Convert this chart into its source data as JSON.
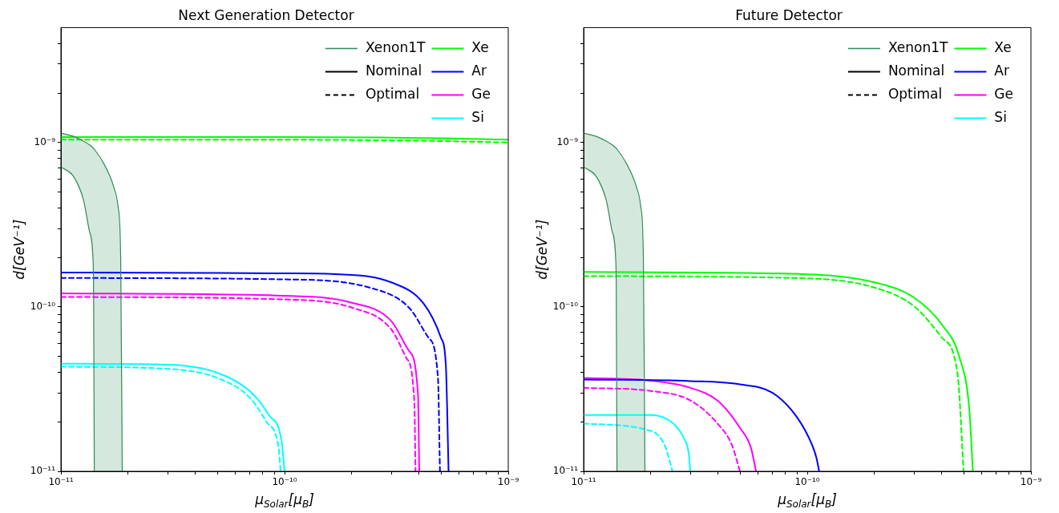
{
  "chart_data": [
    {
      "type": "line",
      "title": "Next Generation Detector",
      "xlabel": "μ$_{Solar}$[μ$_{B}$]",
      "ylabel": "d[GeV⁻¹]",
      "log": "xy",
      "grid": false,
      "legend": "top right",
      "xlim": [
        1e-11,
        1e-09
      ],
      "ylim": [
        1e-11,
        5e-09
      ],
      "xticks": [
        {
          "value": 1e-11,
          "label": "10⁻¹¹"
        },
        {
          "value": 2e-11,
          "label": null
        },
        {
          "value": 3e-11,
          "label": null
        },
        {
          "value": 4e-11,
          "label": null
        },
        {
          "value": 5e-11,
          "label": null
        },
        {
          "value": 6e-11,
          "label": null
        },
        {
          "value": 7e-11,
          "label": null
        },
        {
          "value": 8e-11,
          "label": null
        },
        {
          "value": 9e-11,
          "label": null
        },
        {
          "value": 1e-10,
          "label": "10⁻¹⁰"
        },
        {
          "value": 2e-10,
          "label": null
        },
        {
          "value": 3e-10,
          "label": null
        },
        {
          "value": 4e-10,
          "label": null
        },
        {
          "value": 5e-10,
          "label": null
        },
        {
          "value": 6e-10,
          "label": null
        },
        {
          "value": 7e-10,
          "label": null
        },
        {
          "value": 8e-10,
          "label": null
        },
        {
          "value": 9e-10,
          "label": null
        },
        {
          "value": 1e-09,
          "label": "10⁻⁹"
        }
      ],
      "yticks": [
        {
          "value": 1e-11,
          "label": "10⁻¹¹"
        },
        {
          "value": 2e-11,
          "label": null
        },
        {
          "value": 3e-11,
          "label": null
        },
        {
          "value": 4e-11,
          "label": null
        },
        {
          "value": 5e-11,
          "label": null
        },
        {
          "value": 6e-11,
          "label": null
        },
        {
          "value": 7e-11,
          "label": null
        },
        {
          "value": 8e-11,
          "label": null
        },
        {
          "value": 9e-11,
          "label": null
        },
        {
          "value": 1e-10,
          "label": "10⁻¹⁰"
        },
        {
          "value": 2e-10,
          "label": null
        },
        {
          "value": 3e-10,
          "label": null
        },
        {
          "value": 4e-10,
          "label": null
        },
        {
          "value": 5e-10,
          "label": null
        },
        {
          "value": 6e-10,
          "label": null
        },
        {
          "value": 7e-10,
          "label": null
        },
        {
          "value": 8e-10,
          "label": null
        },
        {
          "value": 9e-10,
          "label": null
        },
        {
          "value": 1e-09,
          "label": "10⁻⁹"
        },
        {
          "value": 2e-09,
          "label": null
        },
        {
          "value": 3e-09,
          "label": null
        },
        {
          "value": 4e-09,
          "label": null
        }
      ],
      "series": [
        {
          "name": "Xenon1T",
          "type": "area",
          "color": "#2e8b57",
          "x": [
            1e-11,
            1.14e-11,
            1.26e-11,
            1.34e-11,
            1.39e-11,
            1.4e-11,
            1.41e-11,
            1.55e-11,
            1.72e-11,
            1.8e-11,
            1.85e-11,
            1.88e-11
          ],
          "values": [
            1.14e-09,
            1.09e-09,
            1.02e-09,
            9.7e-10,
            9.3e-10,
            9.2e-10,
            9.1e-10,
            7.5e-10,
            5.4e-10,
            4.1e-10,
            2e-10,
            1e-11
          ]
        },
        {
          "type": "line",
          "color": "#2e8b57",
          "x": [
            1e-11,
            1.14e-11,
            1.26e-11,
            1.34e-11,
            1.39e-11,
            1.4e-11,
            1.41e-11
          ],
          "values": [
            7.1e-10,
            6.2e-10,
            4.5e-10,
            2.9e-10,
            2e-10,
            1.2e-10,
            1e-11
          ]
        },
        {
          "name": "Nominal",
          "color": "#000000",
          "line_style": "solid"
        },
        {
          "name": "Optimal",
          "color": "#000000",
          "line_style": "dashed"
        },
        {
          "name": "Xe",
          "color": "#00ff00",
          "line_style": "solid",
          "x": [
            1e-11,
            1e-10,
            3e-10,
            5e-10,
            1e-09
          ],
          "values": [
            1.08e-09,
            1.08e-09,
            1.07e-09,
            1.06e-09,
            1.04e-09
          ]
        },
        {
          "name": "Ar",
          "color": "#0000ff",
          "line_style": "solid",
          "x": [
            1e-11,
            5e-11,
            1e-10,
            1.76e-10,
            3e-10,
            4.2e-10,
            5e-10,
            5.26e-10,
            5.41e-10
          ],
          "values": [
            1.62e-10,
            1.61e-10,
            1.6e-10,
            1.58e-10,
            1.41e-10,
            1.04e-10,
            6.5e-11,
            4.4e-11,
            1e-11
          ]
        },
        {
          "name": "Ge",
          "color": "#ff00ff",
          "line_style": "solid",
          "x": [
            1e-11,
            1e-10,
            2e-10,
            3e-10,
            3.6e-10,
            3.95e-10,
            4e-10
          ],
          "values": [
            1.21e-10,
            1.17e-10,
            1.06e-10,
            8.2e-11,
            5.4e-11,
            2.9e-11,
            1e-11
          ]
        },
        {
          "name": "Si",
          "color": "#00ffff",
          "line_style": "solid",
          "x": [
            1e-11,
            3e-11,
            5e-11,
            7e-11,
            8.5e-11,
            9.7e-11,
            1e-10
          ],
          "values": [
            4.51e-11,
            4.45e-11,
            3.98e-11,
            3.07e-11,
            2.2e-11,
            1.52e-11,
            1e-11
          ]
        },
        {
          "color": "#00ff00",
          "line_style": "dashed",
          "x": [
            1e-11,
            1e-10,
            3e-10,
            5e-10,
            1e-09
          ],
          "values": [
            1.04e-09,
            1.04e-09,
            1.03e-09,
            1.02e-09,
            1e-09
          ]
        },
        {
          "color": "#0000ff",
          "line_style": "dashed",
          "x": [
            1e-11,
            1e-10,
            2.4e-10,
            3.6e-10,
            4.4e-10,
            4.85e-10,
            4.95e-10
          ],
          "values": [
            1.5e-10,
            1.47e-10,
            1.31e-10,
            9.9e-11,
            6.5e-11,
            3.7e-11,
            1e-11
          ]
        },
        {
          "color": "#ff00ff",
          "line_style": "dashed",
          "x": [
            1e-11,
            1e-10,
            2e-10,
            3e-10,
            3.5e-10,
            3.8e-10,
            3.85e-10
          ],
          "values": [
            1.15e-10,
            1.11e-10,
            9.9e-11,
            7.3e-11,
            4.9e-11,
            2.7e-11,
            1e-11
          ]
        },
        {
          "color": "#00ffff",
          "line_style": "dashed",
          "x": [
            1e-11,
            3e-11,
            5e-11,
            7e-11,
            8.3e-11,
            9.4e-11,
            9.6e-11
          ],
          "values": [
            4.33e-11,
            4.2e-11,
            3.7e-11,
            2.8e-11,
            2e-11,
            1.39e-11,
            1e-11
          ]
        }
      ]
    },
    {
      "type": "line",
      "title": "Future Detector",
      "xlabel": "μ$_{Solar}$[μ$_{B}$]",
      "ylabel": "d[GeV⁻¹]",
      "log": "xy",
      "grid": false,
      "legend": "top right",
      "xlim": [
        1e-11,
        1e-09
      ],
      "ylim": [
        1e-11,
        5e-09
      ],
      "xticks": [
        {
          "value": 1e-11,
          "label": "10⁻¹¹"
        },
        {
          "value": 2e-11,
          "label": null
        },
        {
          "value": 3e-11,
          "label": null
        },
        {
          "value": 4e-11,
          "label": null
        },
        {
          "value": 5e-11,
          "label": null
        },
        {
          "value": 6e-11,
          "label": null
        },
        {
          "value": 7e-11,
          "label": null
        },
        {
          "value": 8e-11,
          "label": null
        },
        {
          "value": 9e-11,
          "label": null
        },
        {
          "value": 1e-10,
          "label": "10⁻¹⁰"
        },
        {
          "value": 2e-10,
          "label": null
        },
        {
          "value": 3e-10,
          "label": null
        },
        {
          "value": 4e-10,
          "label": null
        },
        {
          "value": 5e-10,
          "label": null
        },
        {
          "value": 6e-10,
          "label": null
        },
        {
          "value": 7e-10,
          "label": null
        },
        {
          "value": 8e-10,
          "label": null
        },
        {
          "value": 9e-10,
          "label": null
        },
        {
          "value": 1e-09,
          "label": "10⁻⁹"
        }
      ],
      "yticks": [
        {
          "value": 1e-11,
          "label": "10⁻¹¹"
        },
        {
          "value": 2e-11,
          "label": null
        },
        {
          "value": 3e-11,
          "label": null
        },
        {
          "value": 4e-11,
          "label": null
        },
        {
          "value": 5e-11,
          "label": null
        },
        {
          "value": 6e-11,
          "label": null
        },
        {
          "value": 7e-11,
          "label": null
        },
        {
          "value": 8e-11,
          "label": null
        },
        {
          "value": 9e-11,
          "label": null
        },
        {
          "value": 1e-10,
          "label": "10⁻¹⁰"
        },
        {
          "value": 2e-10,
          "label": null
        },
        {
          "value": 3e-10,
          "label": null
        },
        {
          "value": 4e-10,
          "label": null
        },
        {
          "value": 5e-10,
          "label": null
        },
        {
          "value": 6e-10,
          "label": null
        },
        {
          "value": 7e-10,
          "label": null
        },
        {
          "value": 8e-10,
          "label": null
        },
        {
          "value": 9e-10,
          "label": null
        },
        {
          "value": 1e-09,
          "label": "10⁻⁹"
        },
        {
          "value": 2e-09,
          "label": null
        },
        {
          "value": 3e-09,
          "label": null
        },
        {
          "value": 4e-09,
          "label": null
        }
      ],
      "series": [
        {
          "name": "Xenon1T",
          "type": "area",
          "color": "#2e8b57",
          "x": [
            1e-11,
            1.14e-11,
            1.26e-11,
            1.34e-11,
            1.39e-11,
            1.4e-11,
            1.41e-11,
            1.55e-11,
            1.72e-11,
            1.8e-11,
            1.85e-11,
            1.88e-11
          ],
          "values": [
            1.14e-09,
            1.09e-09,
            1.02e-09,
            9.7e-10,
            9.3e-10,
            9.2e-10,
            9.1e-10,
            7.5e-10,
            5.4e-10,
            4.1e-10,
            2e-10,
            1e-11
          ]
        },
        {
          "type": "line",
          "color": "#2e8b57",
          "x": [
            1e-11,
            1.14e-11,
            1.26e-11,
            1.34e-11,
            1.39e-11,
            1.4e-11,
            1.41e-11
          ],
          "values": [
            7.1e-10,
            6.2e-10,
            4.5e-10,
            2.9e-10,
            2e-10,
            1.2e-10,
            1e-11
          ]
        },
        {
          "name": "Nominal",
          "color": "#000000",
          "line_style": "solid"
        },
        {
          "name": "Optimal",
          "color": "#000000",
          "line_style": "dashed"
        },
        {
          "name": "Xe",
          "color": "#00ff00",
          "line_style": "solid",
          "x": [
            1e-11,
            1e-10,
            2e-10,
            3e-10,
            4e-10,
            4.8e-10,
            5.3e-10,
            5.5e-10
          ],
          "values": [
            1.63e-10,
            1.58e-10,
            1.41e-10,
            1.14e-10,
            7.8e-11,
            4.9e-11,
            2.4e-11,
            1e-11
          ]
        },
        {
          "name": "Ar",
          "color": "#0000ff",
          "line_style": "solid",
          "x": [
            1e-11,
            3e-11,
            5e-11,
            7e-11,
            9e-11,
            1.05e-10,
            1.1e-10,
            1.13e-10
          ],
          "values": [
            3.62e-11,
            3.54e-11,
            3.38e-11,
            3e-11,
            2.13e-11,
            1.45e-11,
            1.2e-11,
            1e-11
          ]
        },
        {
          "name": "Ge",
          "color": "#ff00ff",
          "line_style": "solid",
          "x": [
            1e-11,
            2e-11,
            3e-11,
            4e-11,
            5e-11,
            5.6e-11,
            5.9e-11
          ],
          "values": [
            3.7e-11,
            3.56e-11,
            3.22e-11,
            2.67e-11,
            1.84e-11,
            1.39e-11,
            1e-11
          ]
        },
        {
          "name": "Si",
          "color": "#00ffff",
          "line_style": "solid",
          "x": [
            1e-11,
            2e-11,
            2.5e-11,
            2.8e-11,
            2.95e-11,
            3e-11
          ],
          "values": [
            2.2e-11,
            2.2e-11,
            1.97e-11,
            1.6e-11,
            1.29e-11,
            1e-11
          ]
        },
        {
          "color": "#00ff00",
          "line_style": "dashed",
          "x": [
            1e-11,
            1e-10,
            2e-10,
            3e-10,
            4e-10,
            4.7e-10,
            5e-10
          ],
          "values": [
            1.54e-10,
            1.49e-10,
            1.31e-10,
            1.01e-10,
            6.5e-11,
            3.9e-11,
            1e-11
          ]
        },
        {
          "color": "#ff00ff",
          "line_style": "dashed",
          "x": [
            1e-11,
            2e-11,
            3e-11,
            4e-11,
            4.6e-11,
            5e-11
          ],
          "values": [
            3.22e-11,
            3.08e-11,
            2.7e-11,
            1.93e-11,
            1.45e-11,
            1e-11
          ]
        },
        {
          "color": "#00ffff",
          "line_style": "dashed",
          "x": [
            1e-11,
            2e-11,
            2.3e-11,
            2.5e-11
          ],
          "values": [
            1.95e-11,
            1.76e-11,
            1.45e-11,
            1e-11
          ]
        }
      ]
    }
  ]
}
